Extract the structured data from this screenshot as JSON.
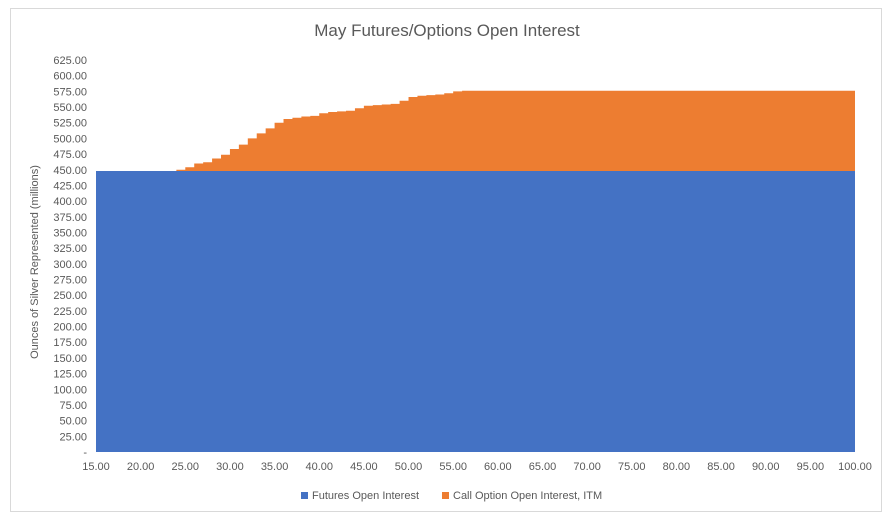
{
  "chart_data": {
    "type": "area",
    "title": "May Futures/Options Open Interest",
    "xlabel": "",
    "ylabel": "Ounces of Silver Represented (millions)",
    "xlim": [
      15,
      100
    ],
    "ylim": [
      0,
      625
    ],
    "x_tick_step": 5,
    "y_tick_step": 25,
    "x_ticks": [
      "15.00",
      "20.00",
      "25.00",
      "30.00",
      "35.00",
      "40.00",
      "45.00",
      "50.00",
      "55.00",
      "60.00",
      "65.00",
      "70.00",
      "75.00",
      "80.00",
      "85.00",
      "90.00",
      "95.00",
      "100.00"
    ],
    "y_ticks": [
      "-",
      "25.00",
      "50.00",
      "75.00",
      "100.00",
      "125.00",
      "150.00",
      "175.00",
      "200.00",
      "225.00",
      "250.00",
      "275.00",
      "300.00",
      "325.00",
      "350.00",
      "375.00",
      "400.00",
      "425.00",
      "450.00",
      "475.00",
      "500.00",
      "525.00",
      "550.00",
      "575.00",
      "600.00",
      "625.00"
    ],
    "legend_position": "bottom",
    "stacked": true,
    "series": [
      {
        "name": "Futures Open Interest",
        "color": "#4472C4",
        "points": [
          [
            15,
            448
          ],
          [
            100,
            448
          ]
        ]
      },
      {
        "name": "Call Option Open Interest, ITM",
        "color": "#ED7D31",
        "points": [
          [
            15,
            0
          ],
          [
            23,
            0
          ],
          [
            24,
            2
          ],
          [
            25,
            6
          ],
          [
            26,
            12
          ],
          [
            27,
            14
          ],
          [
            28,
            20
          ],
          [
            29,
            26
          ],
          [
            30,
            35
          ],
          [
            31,
            42
          ],
          [
            32,
            52
          ],
          [
            33,
            60
          ],
          [
            34,
            68
          ],
          [
            35,
            77
          ],
          [
            36,
            83
          ],
          [
            37,
            85
          ],
          [
            38,
            87
          ],
          [
            39,
            88
          ],
          [
            40,
            92
          ],
          [
            41,
            94
          ],
          [
            42,
            95
          ],
          [
            43,
            96
          ],
          [
            44,
            100
          ],
          [
            45,
            104
          ],
          [
            46,
            105
          ],
          [
            47,
            106
          ],
          [
            48,
            107
          ],
          [
            49,
            112
          ],
          [
            50,
            118
          ],
          [
            51,
            120
          ],
          [
            52,
            121
          ],
          [
            53,
            122
          ],
          [
            54,
            124
          ],
          [
            55,
            127
          ],
          [
            56,
            128
          ],
          [
            100,
            128
          ]
        ]
      }
    ]
  }
}
